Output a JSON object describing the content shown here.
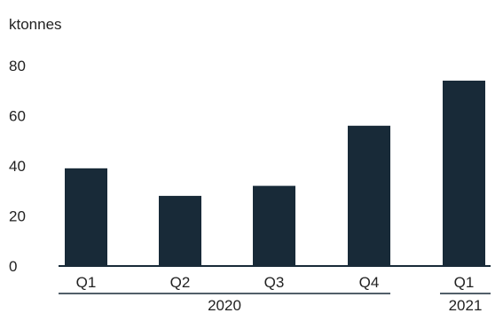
{
  "chart_data": {
    "type": "bar",
    "unit_label": "ktonnes",
    "categories": [
      "Q1",
      "Q2",
      "Q3",
      "Q4",
      "Q1"
    ],
    "groups": [
      {
        "label": "2020",
        "categories": [
          "Q1",
          "Q2",
          "Q3",
          "Q4"
        ]
      },
      {
        "label": "2021",
        "categories": [
          "Q1"
        ]
      }
    ],
    "values": [
      39,
      28,
      32,
      56,
      74
    ],
    "y_ticks": [
      "0",
      "20",
      "40",
      "60",
      "80"
    ],
    "ylim": [
      0,
      80
    ],
    "grid": false,
    "legend": "none",
    "bar_color": "#182a38",
    "axis_color": "#182a38"
  }
}
